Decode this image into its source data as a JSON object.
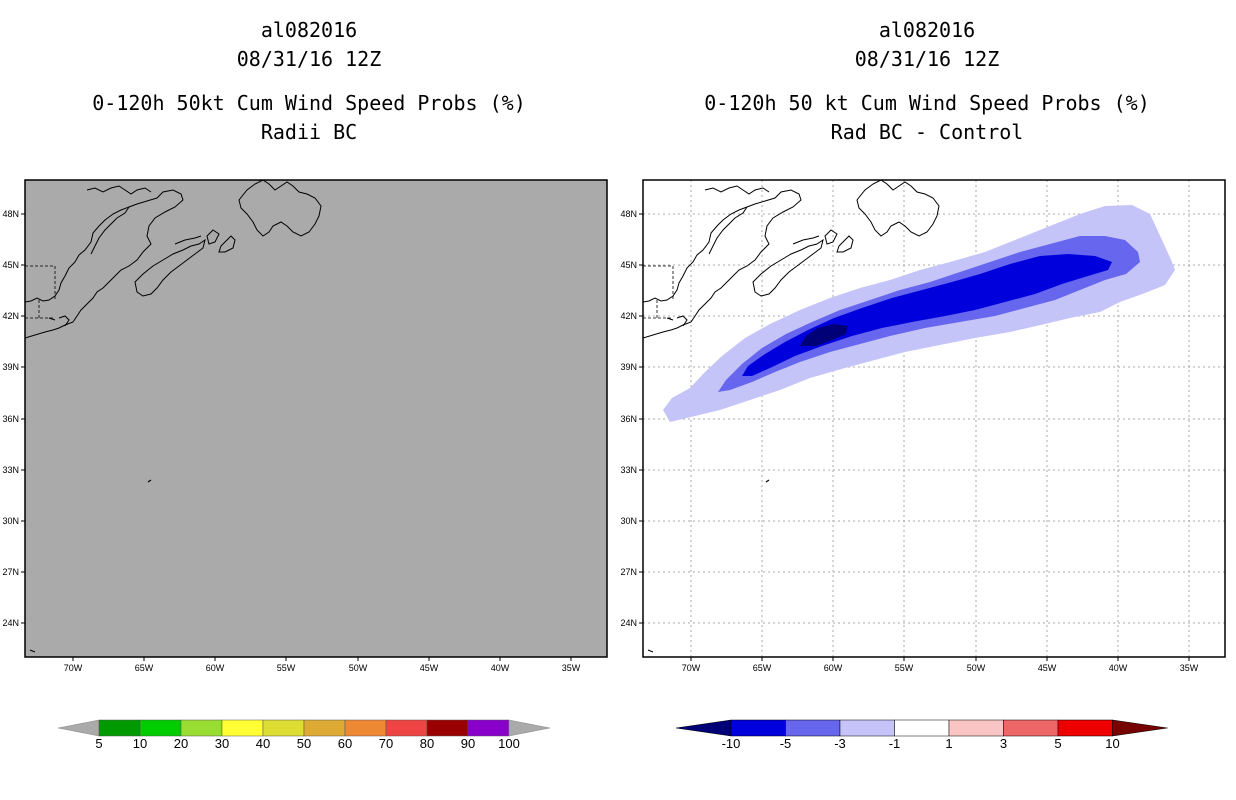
{
  "left_panel": {
    "storm_id": "al082016",
    "datetime": "08/31/16 12Z",
    "product": "0-120h 50kt Cum Wind Speed Probs (%)",
    "subtitle": "Radii BC",
    "background_color": "#aaaaaa",
    "lat_labels": [
      "48N",
      "45N",
      "42N",
      "39N",
      "36N",
      "33N",
      "30N",
      "27N",
      "24N"
    ],
    "lon_labels": [
      "70W",
      "65W",
      "60W",
      "55W",
      "50W",
      "45W",
      "40W",
      "35W"
    ],
    "colorbar": {
      "labels": [
        "5",
        "10",
        "20",
        "30",
        "40",
        "50",
        "60",
        "70",
        "80",
        "90",
        "100"
      ],
      "colors": [
        "#009900",
        "#00cc00",
        "#99dd33",
        "#ffff33",
        "#dddd33",
        "#ddaa33",
        "#ee8833",
        "#ee4444",
        "#990000",
        "#8800cc"
      ],
      "end_color": "#aaaaaa"
    }
  },
  "right_panel": {
    "storm_id": "al082016",
    "datetime": "08/31/16 12Z",
    "product": "0-120h 50 kt Cum Wind Speed Probs (%)",
    "subtitle": "Rad BC - Control",
    "background_color": "#ffffff",
    "lat_labels": [
      "48N",
      "45N",
      "42N",
      "39N",
      "36N",
      "33N",
      "30N",
      "27N",
      "24N"
    ],
    "lon_labels": [
      "70W",
      "65W",
      "60W",
      "55W",
      "50W",
      "45W",
      "40W",
      "35W"
    ],
    "colorbar": {
      "labels": [
        "-10",
        "-5",
        "-3",
        "-1",
        "1",
        "3",
        "5",
        "10"
      ],
      "colors": [
        "#0000dd",
        "#6666ee",
        "#c4c4f8",
        "#ffffff",
        "#f8c4c4",
        "#ee6666",
        "#ee0000"
      ],
      "left_end_color": "#000077",
      "right_end_color": "#770000"
    },
    "field_colors": {
      "level1": "#c4c4f8",
      "level2": "#6666ee",
      "level3": "#0000dd",
      "level4": "#000077"
    }
  }
}
